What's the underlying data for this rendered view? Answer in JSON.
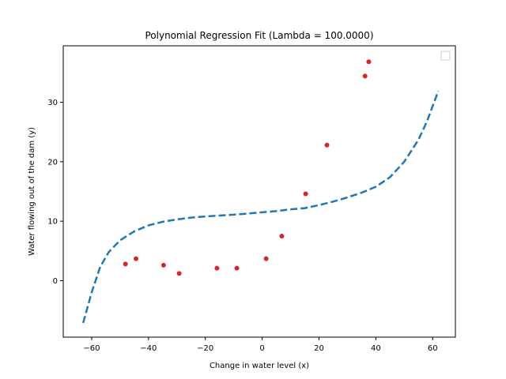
{
  "chart_data": {
    "type": "scatter",
    "title": "Polynomial Regression Fit (Lambda = 100.0000)",
    "xlabel": "Change in water level (x)",
    "ylabel": "Water flowing out of the dam (y)",
    "xlim": [
      -70,
      68
    ],
    "ylim": [
      -9.5,
      39.5
    ],
    "xticks": [
      -60,
      -40,
      -20,
      0,
      20,
      40,
      60
    ],
    "yticks": [
      0,
      10,
      20,
      30
    ],
    "grid": false,
    "legend": {
      "placement": "top-right",
      "entries": []
    },
    "series": [
      {
        "kind": "scatter",
        "color": "#d62728",
        "points": [
          [
            -48.1,
            2.8
          ],
          [
            -44.4,
            3.7
          ],
          [
            -34.7,
            2.6
          ],
          [
            -29.2,
            1.2
          ],
          [
            -15.9,
            2.1
          ],
          [
            -8.9,
            2.1
          ],
          [
            1.4,
            3.7
          ],
          [
            6.9,
            7.5
          ],
          [
            15.3,
            14.6
          ],
          [
            22.8,
            22.8
          ],
          [
            36.2,
            34.4
          ],
          [
            37.5,
            36.8
          ]
        ]
      },
      {
        "kind": "line",
        "style": "dashed",
        "color": "#1f77b4",
        "points": [
          [
            -63,
            -7.1
          ],
          [
            -60,
            -2.0
          ],
          [
            -57,
            2.3
          ],
          [
            -54,
            4.8
          ],
          [
            -50,
            6.8
          ],
          [
            -45,
            8.3
          ],
          [
            -40,
            9.3
          ],
          [
            -35,
            9.9
          ],
          [
            -30,
            10.3
          ],
          [
            -25,
            10.6
          ],
          [
            -20,
            10.8
          ],
          [
            -15,
            10.95
          ],
          [
            -10,
            11.1
          ],
          [
            -5,
            11.3
          ],
          [
            0,
            11.5
          ],
          [
            5,
            11.7
          ],
          [
            10,
            12.0
          ],
          [
            15,
            12.2
          ],
          [
            20,
            12.7
          ],
          [
            25,
            13.3
          ],
          [
            30,
            14.0
          ],
          [
            35,
            14.8
          ],
          [
            40,
            15.8
          ],
          [
            45,
            17.4
          ],
          [
            50,
            20.0
          ],
          [
            55,
            23.7
          ],
          [
            58,
            26.8
          ],
          [
            62,
            31.9
          ]
        ]
      }
    ]
  }
}
